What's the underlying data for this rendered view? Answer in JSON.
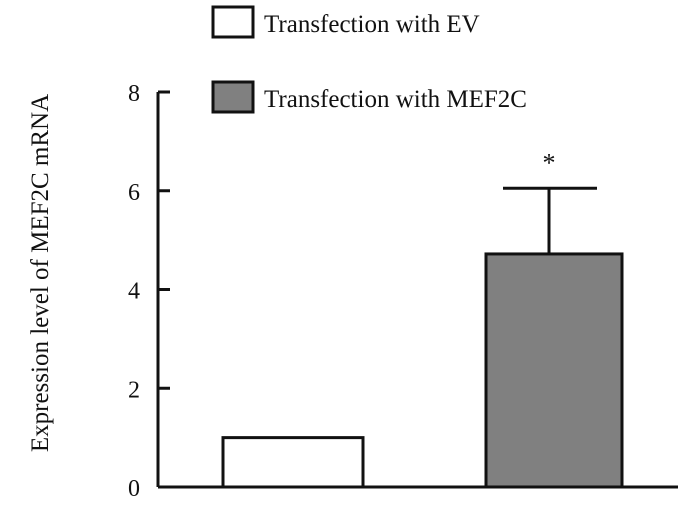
{
  "chart_data": {
    "type": "bar",
    "categories": [
      "Transfection with EV",
      "Transfection with MEF2C"
    ],
    "values": [
      1.0,
      4.72
    ],
    "errors": [
      0,
      1.33
    ],
    "ylabel": "Expression level of MEF2C mRNA",
    "ylim": [
      0,
      8
    ],
    "yticks": [
      "0",
      "2",
      "4",
      "6",
      "8"
    ],
    "legend": [
      "Transfection with EV",
      "Transfection with MEF2C"
    ],
    "annotations": [
      "*"
    ],
    "grid": false,
    "legend_position": "top",
    "colors": {
      "ev": "#ffffff",
      "mef2c": "#808080",
      "axis": "#111111"
    }
  }
}
